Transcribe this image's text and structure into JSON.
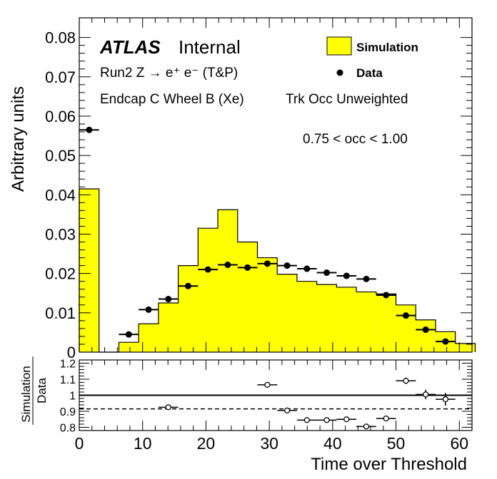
{
  "labels": {
    "atlas": "ATLAS",
    "internal": "Internal",
    "line1": "Run2 Z → e⁺ e⁻ (T&P)",
    "line2": "Endcap C Wheel B (Xe)",
    "line2b": "Trk Occ Unweighted",
    "range": "0.75 < occ < 1.00"
  },
  "colors": {
    "simulation_fill": "#ffff00",
    "outline": "#000000"
  },
  "chart_data": [
    {
      "type": "histogram",
      "xlabel": "Time over Threshold",
      "ylabel": "Arbitrary units",
      "xlim": [
        0,
        62
      ],
      "ylim": [
        0,
        0.085
      ],
      "yticks": [
        "0",
        "0.01",
        "0.02",
        "0.03",
        "0.04",
        "0.05",
        "0.06",
        "0.07",
        "0.08"
      ],
      "legend": {
        "position": "top-right",
        "entries": [
          "Simulation",
          "Data"
        ]
      },
      "bin_width": 3.125,
      "series": [
        {
          "name": "Simulation",
          "style": "filled-histogram",
          "bin_edges": [
            0,
            3.125,
            6.25,
            9.375,
            12.5,
            15.625,
            18.75,
            21.875,
            25,
            28.125,
            31.25,
            34.375,
            37.5,
            40.625,
            43.75,
            46.875,
            50,
            53.125,
            56.25,
            59.375
          ],
          "values": [
            0.0415,
            0,
            0.0025,
            0.0072,
            0.0125,
            0.022,
            0.0315,
            0.0362,
            0.028,
            0.024,
            0.0198,
            0.018,
            0.0172,
            0.0165,
            0.0153,
            0.0148,
            0.012,
            0.0082,
            0.0052,
            0.0022
          ]
        },
        {
          "name": "Data",
          "style": "points",
          "x": [
            1.5625,
            7.8125,
            10.9375,
            14.0625,
            17.1875,
            20.3125,
            23.4375,
            26.5625,
            29.6875,
            32.8125,
            35.9375,
            39.0625,
            42.1875,
            45.3125,
            48.4375,
            51.5625,
            54.6875,
            57.8125
          ],
          "values": [
            0.0565,
            0.0045,
            0.0108,
            0.0135,
            0.0168,
            0.021,
            0.0222,
            0.0215,
            0.0225,
            0.022,
            0.0212,
            0.0202,
            0.0194,
            0.0186,
            0.0145,
            0.0093,
            0.0057,
            0.0027
          ]
        }
      ]
    },
    {
      "type": "scatter",
      "xlabel": "Time over Threshold",
      "ylabel": "Simulation / Data",
      "ylabel_num": "Simulation",
      "ylabel_den": "Data",
      "xlim": [
        0,
        62
      ],
      "ylim": [
        0.78,
        1.22
      ],
      "xticks": [
        "0",
        "10",
        "20",
        "30",
        "40",
        "50",
        "60"
      ],
      "yticks": [
        "0.8",
        "0.9",
        "1",
        "1.1",
        "1.2"
      ],
      "reference_lines": {
        "solid": 1.0,
        "dashed": 0.915
      },
      "series": [
        {
          "name": "Simulation/Data",
          "x": [
            14.0625,
            29.6875,
            32.8125,
            35.9375,
            39.0625,
            42.1875,
            45.3125,
            48.4375,
            51.5625,
            54.6875,
            57.8125
          ],
          "values": [
            0.925,
            1.065,
            0.905,
            0.845,
            0.845,
            0.85,
            0.805,
            0.855,
            1.09,
            1.005,
            0.975
          ],
          "yerr": [
            0.012,
            0.01,
            0.008,
            0.008,
            0.008,
            0.009,
            0.01,
            0.012,
            0.02,
            0.03,
            0.04
          ]
        }
      ]
    }
  ]
}
